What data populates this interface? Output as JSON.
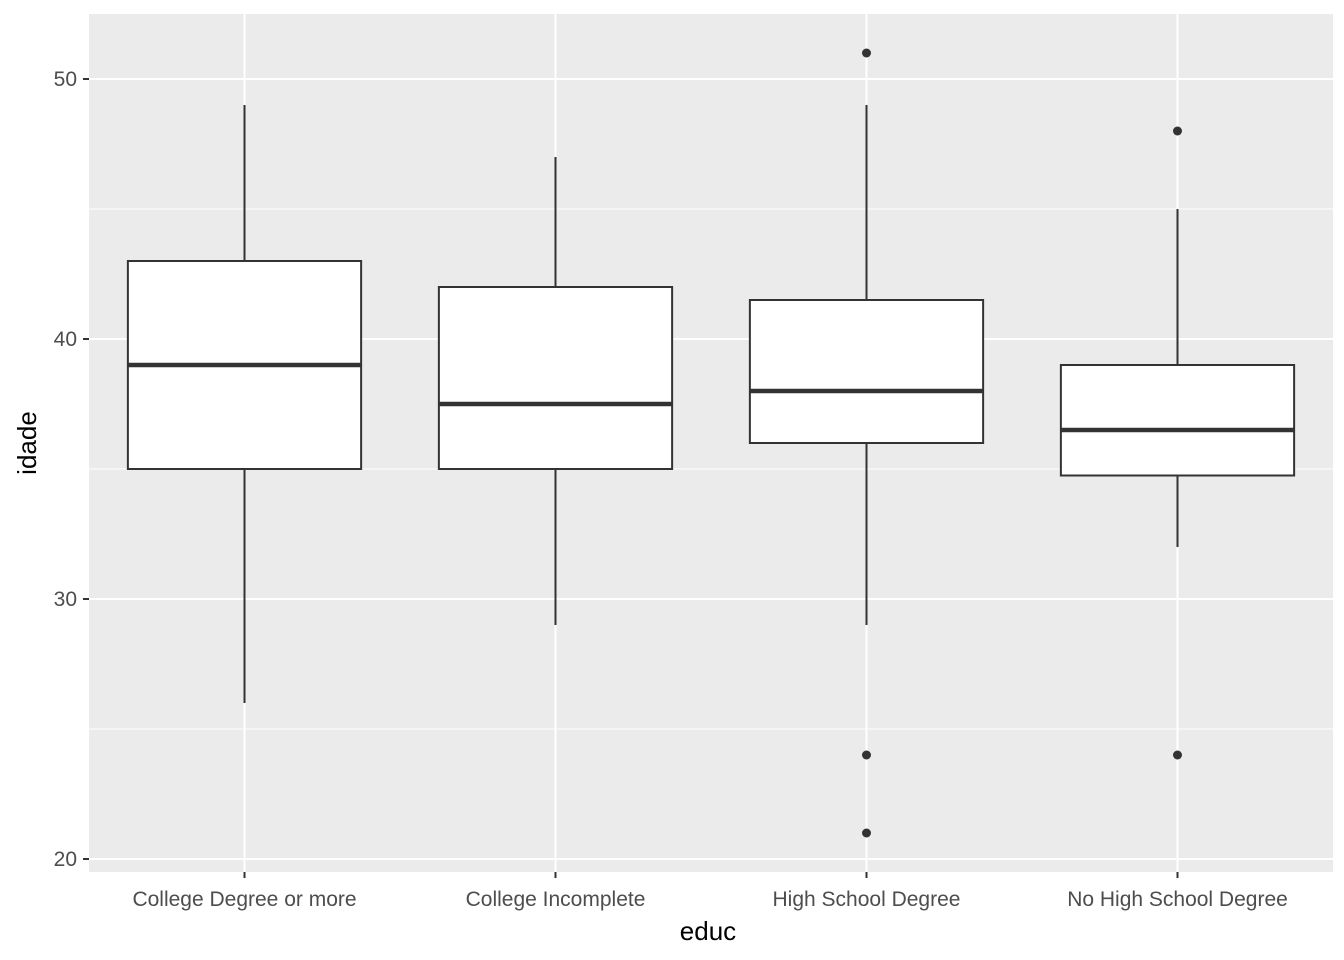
{
  "chart_data": {
    "type": "boxplot",
    "title": "",
    "xlabel": "educ",
    "ylabel": "idade",
    "ylim": [
      19.5,
      52.5
    ],
    "yticks": [
      20,
      30,
      40,
      50
    ],
    "grid": true,
    "colors": {
      "panel": "#ebebeb",
      "grid": "#ffffff",
      "box_fill": "#ffffff",
      "box_line": "#333333",
      "tick_label": "#4d4d4d",
      "axis_title": "#000000"
    },
    "categories": [
      "College Degree or more",
      "College Incomplete",
      "High School Degree",
      "No High School Degree"
    ],
    "boxes": [
      {
        "category": "College Degree or more",
        "lower_whisker": 26,
        "q1": 35,
        "median": 39,
        "q3": 43,
        "upper_whisker": 49,
        "outliers": []
      },
      {
        "category": "College Incomplete",
        "lower_whisker": 29,
        "q1": 35,
        "median": 37.5,
        "q3": 42,
        "upper_whisker": 47,
        "outliers": []
      },
      {
        "category": "High School Degree",
        "lower_whisker": 29,
        "q1": 36,
        "median": 38,
        "q3": 41.5,
        "upper_whisker": 49,
        "outliers": [
          51,
          24,
          21
        ]
      },
      {
        "category": "No High School Degree",
        "lower_whisker": 32,
        "q1": 34.75,
        "median": 36.5,
        "q3": 39,
        "upper_whisker": 45,
        "outliers": [
          48,
          24
        ]
      }
    ]
  }
}
